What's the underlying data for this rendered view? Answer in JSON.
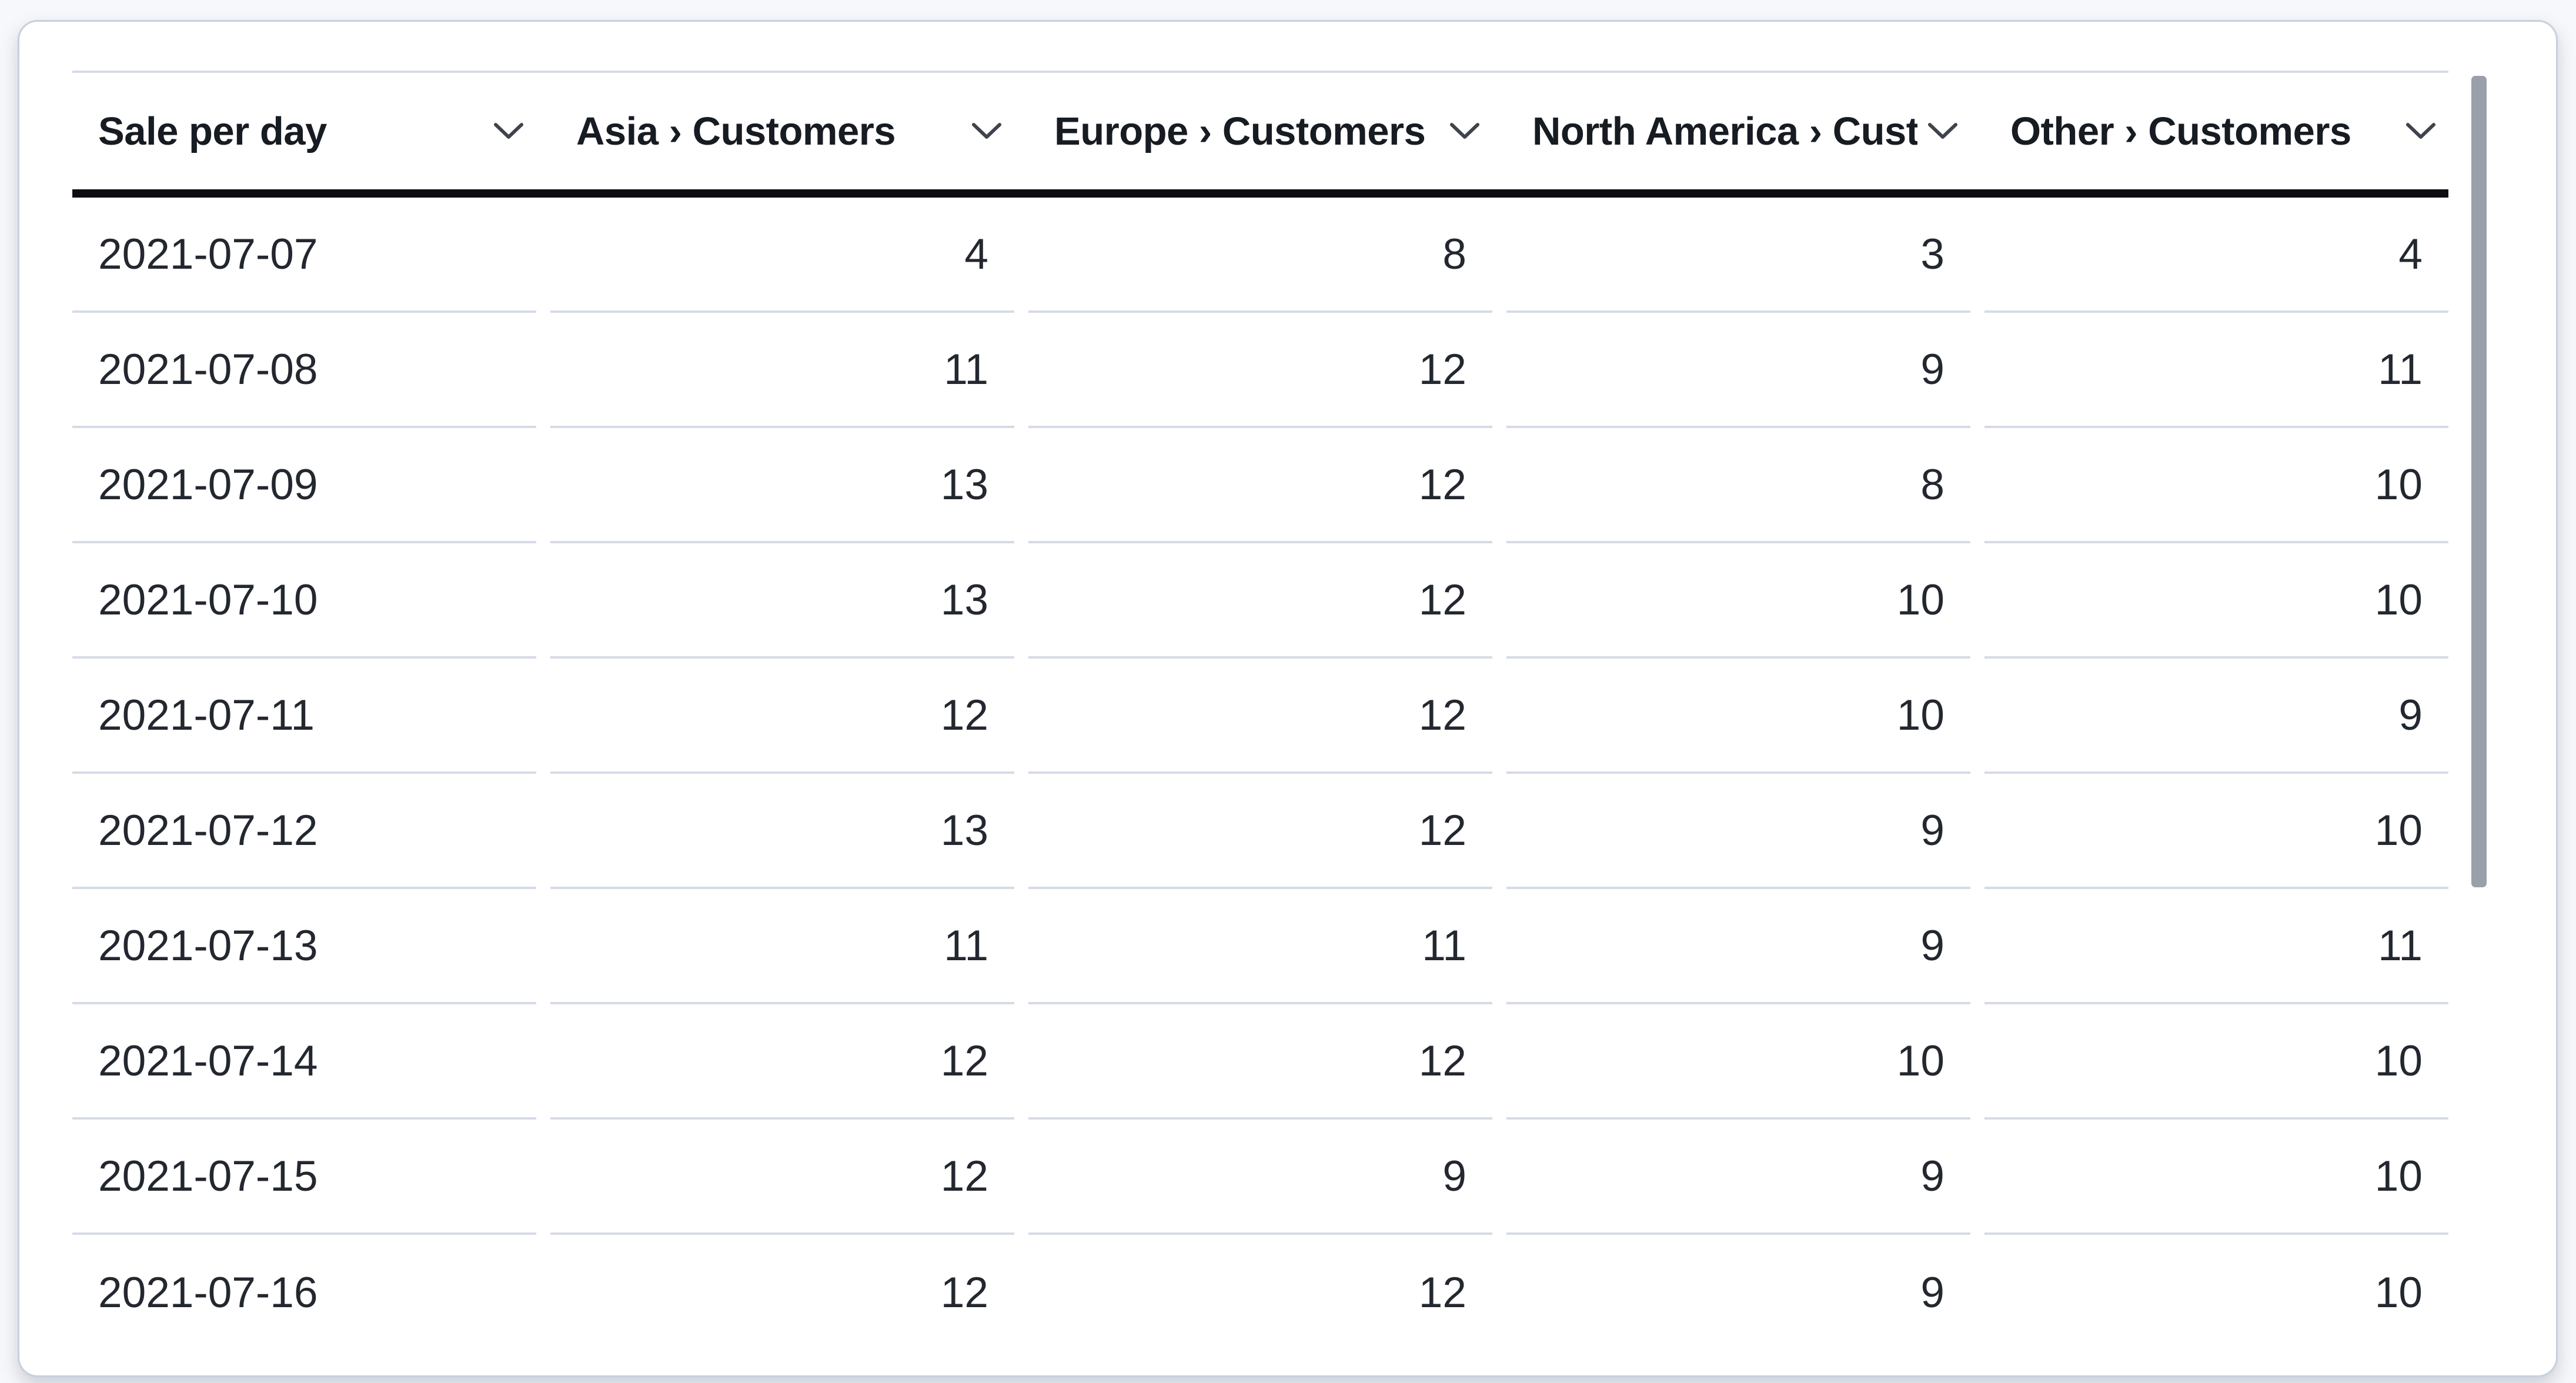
{
  "table": {
    "title": "Sale per day",
    "columns": [
      {
        "label": "Sale per day",
        "align": "left"
      },
      {
        "label": "Asia › Customers",
        "align": "right"
      },
      {
        "label": "Europe › Customers",
        "align": "right"
      },
      {
        "label": "North America › Customers",
        "align": "right"
      },
      {
        "label": "Other › Customers",
        "align": "right"
      }
    ],
    "rows": [
      [
        "2021-07-07",
        "4",
        "8",
        "3",
        "4"
      ],
      [
        "2021-07-08",
        "11",
        "12",
        "9",
        "11"
      ],
      [
        "2021-07-09",
        "13",
        "12",
        "8",
        "10"
      ],
      [
        "2021-07-10",
        "13",
        "12",
        "10",
        "10"
      ],
      [
        "2021-07-11",
        "12",
        "12",
        "10",
        "9"
      ],
      [
        "2021-07-12",
        "13",
        "12",
        "9",
        "10"
      ],
      [
        "2021-07-13",
        "11",
        "11",
        "9",
        "11"
      ],
      [
        "2021-07-14",
        "12",
        "12",
        "10",
        "10"
      ],
      [
        "2021-07-15",
        "12",
        "9",
        "9",
        "10"
      ],
      [
        "2021-07-16",
        "12",
        "12",
        "9",
        "10"
      ]
    ]
  },
  "icons": {
    "column_sort": "chevron-down-icon"
  },
  "scrollbar": {
    "orientation": "vertical",
    "thumb_visible": true
  },
  "colors": {
    "page_background": "#f7f8fb",
    "card_background": "#ffffff",
    "card_border": "#c7d0de",
    "header_text": "#171b22",
    "body_text": "#23272f",
    "row_divider": "#d5dbe7",
    "header_heavy_border": "#0c0e13",
    "chevron": "#3e434c",
    "scrollbar_thumb": "#9aa0aa"
  }
}
